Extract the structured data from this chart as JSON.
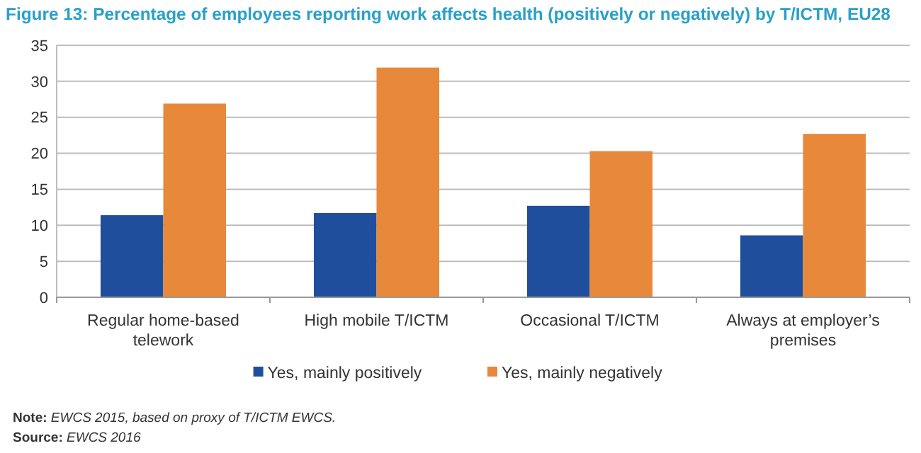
{
  "chart_data": {
    "type": "bar",
    "title": "Figure 13: Percentage of employees reporting work affects health (positively or negatively) by T/ICTM, EU28",
    "categories": [
      "Regular home-based telework",
      "High mobile T/ICTM",
      "Occasional T/ICTM",
      "Always at employer’s premises"
    ],
    "series": [
      {
        "name": "Yes, mainly positively",
        "color": "#1f4e9c",
        "values": [
          11.4,
          11.7,
          12.7,
          8.6
        ]
      },
      {
        "name": "Yes, mainly negatively",
        "color": "#e8883a",
        "values": [
          26.9,
          31.9,
          20.3,
          22.7
        ]
      }
    ],
    "ylim": [
      0,
      35
    ],
    "yticks": [
      0,
      5,
      10,
      15,
      20,
      25,
      30,
      35
    ],
    "grid": "y",
    "legend": "bottom",
    "annotations": [
      "Note: EWCS 2015, based on proxy of T/ICTM EWCS.",
      "Source: EWCS 2016"
    ]
  }
}
